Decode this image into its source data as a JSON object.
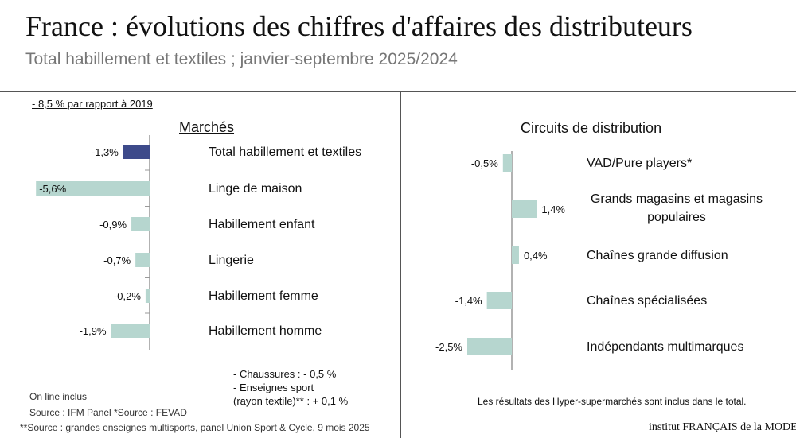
{
  "header": {
    "title": "France : évolutions des chiffres d'affaires des distributeurs",
    "subtitle": "Total habillement et textiles ; janvier-septembre 2025/2024"
  },
  "chart_data": [
    {
      "type": "bar",
      "orientation": "horizontal",
      "title": "Marchés",
      "categories": [
        "Total habillement et textiles",
        "Linge de maison",
        "Habillement enfant",
        "Lingerie",
        "Habillement femme",
        "Habillement homme"
      ],
      "values": [
        -1.3,
        -5.6,
        -0.9,
        -0.7,
        -0.2,
        -1.9
      ],
      "data_labels": [
        "-1,3%",
        "-5,6%",
        "-0,9%",
        "-0,7%",
        "-0,2%",
        "-1,9%"
      ],
      "unit": "%",
      "colors": [
        "#3d4a8a",
        "#b6d6cf",
        "#b6d6cf",
        "#b6d6cf",
        "#b6d6cf",
        "#b6d6cf"
      ],
      "grid": false
    },
    {
      "type": "bar",
      "orientation": "horizontal",
      "title": "Circuits de distribution",
      "categories": [
        "VAD/Pure players*",
        "Grands magasins et magasins populaires",
        "Chaînes grande diffusion",
        "Chaînes spécialisées",
        "Indépendants multimarques"
      ],
      "values": [
        -0.5,
        1.4,
        0.4,
        -1.4,
        -2.5
      ],
      "data_labels": [
        "-0,5%",
        "1,4%",
        "0,4%",
        "-1,4%",
        "-2,5%"
      ],
      "unit": "%",
      "colors": [
        "#b6d6cf"
      ],
      "grid": false
    }
  ],
  "notes": {
    "vs2019": "- 8,5 % par rapport à 2019",
    "chaussures": "- Chaussures : - 0,5 %",
    "sport1": "- Enseignes sport",
    "sport2": "(rayon textile)** : + 0,1 %",
    "online": "On line inclus",
    "source1": "Source : IFM Panel *Source : FEVAD",
    "source2": "**Source : grandes enseignes multisports, panel Union Sport & Cycle, 9 mois 2025",
    "hyper": "Les résultats des Hyper-supermarchés sont inclus dans le total.",
    "logo": "institut FRANÇAIS de la MODE"
  }
}
